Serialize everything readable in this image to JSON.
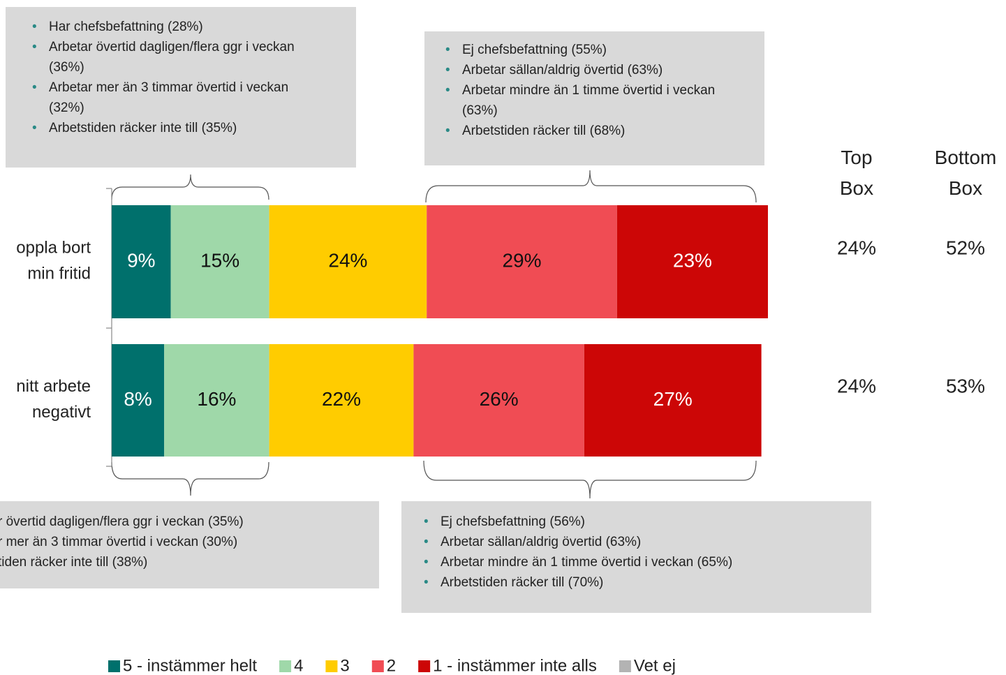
{
  "chart_data": {
    "type": "stacked_bar_horizontal",
    "categories": [
      "oppla bort\nmin fritid",
      "nitt arbete\nnegativt"
    ],
    "xlim": [
      0,
      100
    ],
    "series": [
      {
        "name": "5 - instämmer helt",
        "color": "#00706c",
        "label_color": "#ffffff",
        "values": [
          9,
          8
        ],
        "value_labels": [
          "9%",
          "8%"
        ]
      },
      {
        "name": "4",
        "color": "#9fd8a9",
        "label_color": "#111111",
        "values": [
          15,
          16
        ],
        "value_labels": [
          "15%",
          "16%"
        ]
      },
      {
        "name": "3",
        "color": "#ffcc00",
        "label_color": "#111111",
        "values": [
          24,
          22
        ],
        "value_labels": [
          "24%",
          "22%"
        ]
      },
      {
        "name": "2",
        "color": "#f04c54",
        "label_color": "#111111",
        "values": [
          29,
          26
        ],
        "value_labels": [
          "29%",
          "26%"
        ]
      },
      {
        "name": "1 - instämmer inte alls",
        "color": "#cc0606",
        "label_color": "#ffffff",
        "values": [
          23,
          27
        ],
        "value_labels": [
          "23%",
          "27%"
        ]
      },
      {
        "name": "Vet ej",
        "color": "#b3b3b3",
        "label_color": "#111111",
        "values": [
          0,
          0
        ]
      }
    ],
    "side_columns": [
      {
        "label": "Top Box",
        "values": [
          24,
          24
        ],
        "value_labels": [
          "24%",
          "24%"
        ]
      },
      {
        "label": "Bottom Box",
        "values": [
          52,
          53
        ],
        "value_labels": [
          "52%",
          "53%"
        ]
      }
    ],
    "annotations": [
      {
        "items": [
          "Har chefsbefattning (28%)",
          "Arbetar övertid dagligen/flera ggr i veckan (36%)",
          "Arbetar mer än 3 timmar övertid i veckan (32%)",
          "Arbetstiden räcker inte till (35%)"
        ]
      },
      {
        "items": [
          "Ej chefsbefattning (55%)",
          "Arbetar sällan/aldrig övertid (63%)",
          "Arbetar mindre än 1 timme övertid i veckan (63%)",
          "Arbetstiden räcker till (68%)"
        ]
      },
      {
        "items": [
          "r övertid dagligen/flera ggr i veckan (35%)",
          "r mer än 3 timmar övertid i veckan (30%)",
          "tiden räcker inte till (38%)"
        ]
      },
      {
        "items": [
          "Ej chefsbefattning (56%)",
          "Arbetar sällan/aldrig övertid (63%)",
          "Arbetar mindre än 1 timme övertid i veckan (65%)",
          "Arbetstiden räcker till (70%)"
        ]
      }
    ],
    "legend": true
  }
}
